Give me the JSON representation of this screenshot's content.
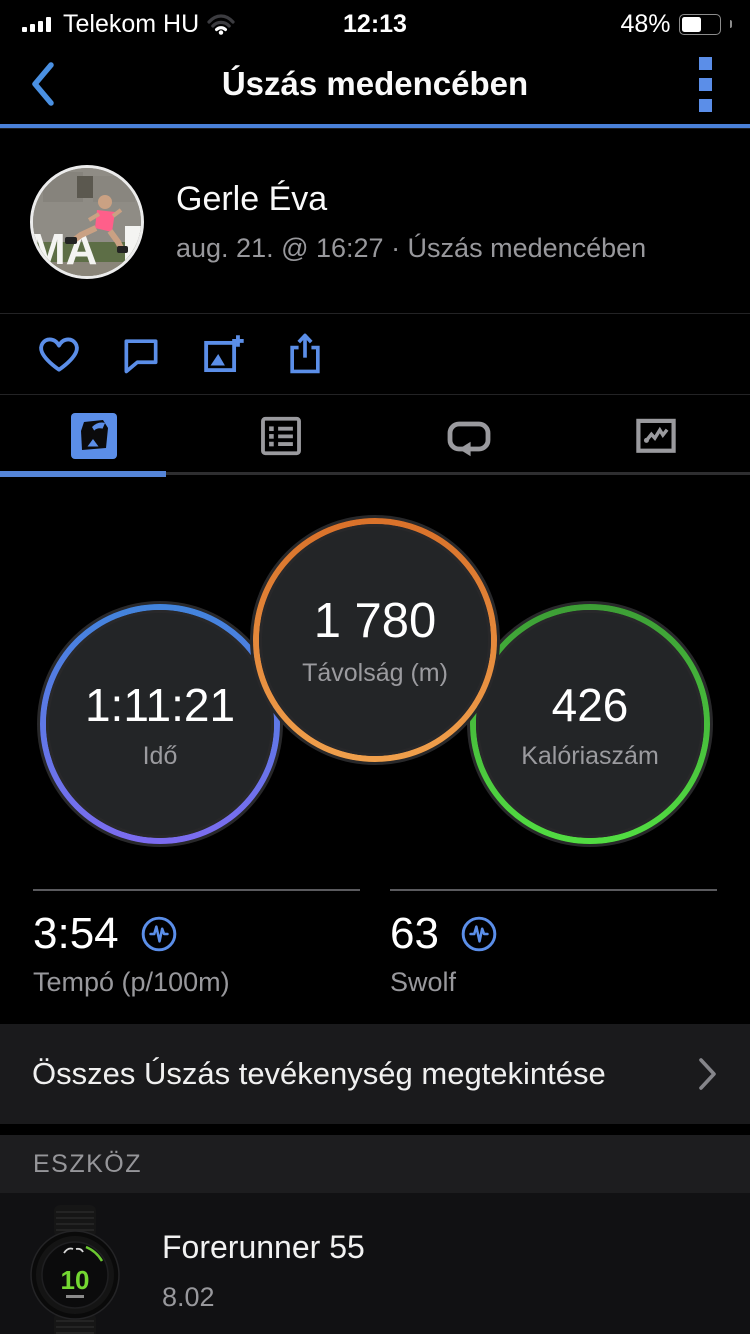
{
  "colors": {
    "accent_blue": "#5b8ee8",
    "nav_border_blue": "#4a80d8",
    "tab_underline_blue": "#5585d8",
    "circle_fill": "#232527",
    "watch_display_green": "#74d832"
  },
  "status_bar": {
    "carrier": "Telekom HU",
    "time": "12:13",
    "battery_percent": "48%",
    "battery_fill_percent": 48,
    "wifi_strength": "1-of-3-bars",
    "signal_strength": "4-of-4-bars"
  },
  "nav": {
    "title": "Úszás medencében"
  },
  "profile": {
    "name": "Gerle Éva",
    "subtitle": "aug. 21. @ 16:27 · Úszás medencében",
    "avatar_sign_text": "MA"
  },
  "icons": {
    "status_icons": [
      "signal-bars-icon",
      "wifi-icon",
      "battery-icon"
    ],
    "nav_icons": [
      "back-chevron-icon",
      "overflow-menu-icon"
    ],
    "action_icons": [
      "heart-icon",
      "comment-icon",
      "add-photo-icon",
      "share-icon"
    ],
    "tab_icons": [
      "swim-map-icon",
      "list-icon",
      "laps-icon",
      "chart-icon"
    ],
    "stat_icon": "pulse-icon",
    "row_icon": "chevron-right-icon"
  },
  "tabs": [
    {
      "icon": "swim-map-icon",
      "active": true
    },
    {
      "icon": "list-icon",
      "active": false
    },
    {
      "icon": "laps-icon",
      "active": false
    },
    {
      "icon": "chart-icon",
      "active": false
    }
  ],
  "circles": [
    {
      "value": "1:11:21",
      "label": "Idő",
      "ring_top": "#4284dc",
      "ring_bottom": "#7c6cf0",
      "position": "left"
    },
    {
      "value": "1 780",
      "label": "Távolság (m)",
      "ring_top": "#d9712a",
      "ring_bottom": "#f0a04c",
      "position": "center"
    },
    {
      "value": "426",
      "label": "Kalóriaszám",
      "ring_top": "#3d9e36",
      "ring_bottom": "#52dd42",
      "position": "right"
    }
  ],
  "secondary_stats": [
    {
      "value": "3:54",
      "label": "Tempó (p/100m)"
    },
    {
      "value": "63",
      "label": "Swolf"
    }
  ],
  "link_row": {
    "label": "Összes Úszás tevékenység megtekintése"
  },
  "device_section": {
    "header": "ESZKÖZ",
    "device_name": "Forerunner 55",
    "firmware": "8.02",
    "watch_face_value": "10"
  }
}
